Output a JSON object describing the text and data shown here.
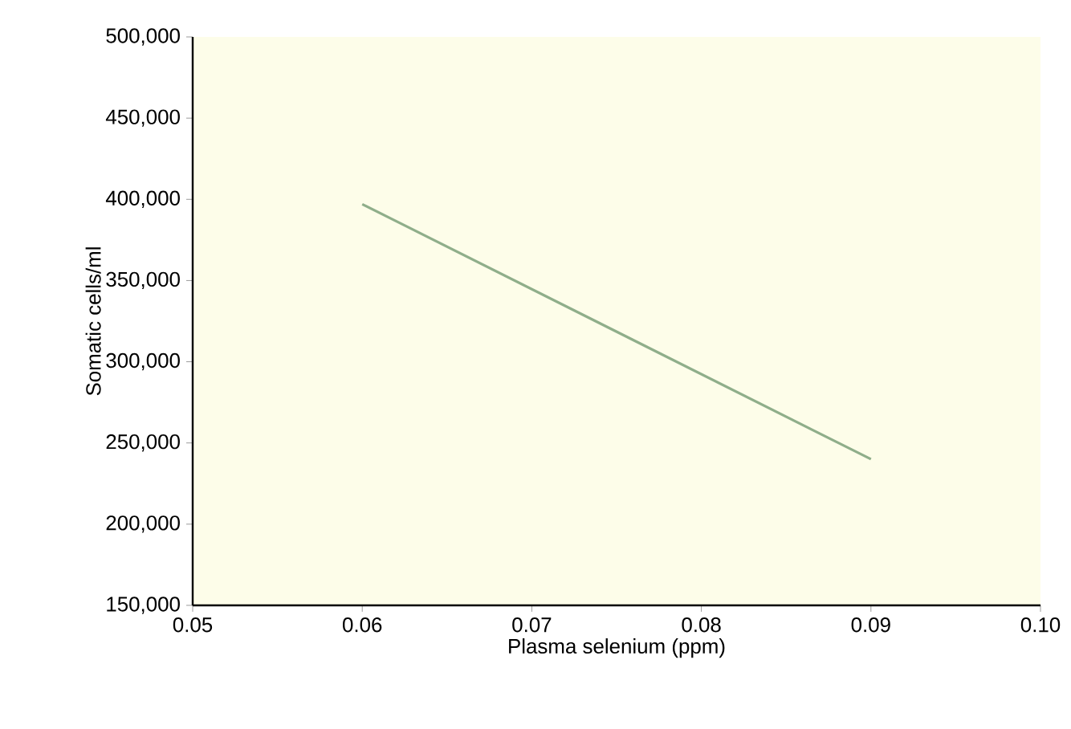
{
  "chart_data": {
    "type": "line",
    "xlabel": "Plasma selenium (ppm)",
    "ylabel": "Somatic cells/ml",
    "x": [
      0.06,
      0.09
    ],
    "values": [
      397000,
      240000
    ],
    "color": "#8fae8a",
    "xlim": [
      0.05,
      0.1
    ],
    "xticks": [
      0.05,
      0.06,
      0.07,
      0.08,
      0.09,
      {
        "value": 0.1,
        "label": "0.10"
      }
    ],
    "ylim": [
      150000,
      500000
    ],
    "yticks": [
      {
        "value": 150000,
        "label": "150,000"
      },
      {
        "value": 200000,
        "label": "200,000"
      },
      {
        "value": 250000,
        "label": "250,000"
      },
      {
        "value": 300000,
        "label": "300,000"
      },
      {
        "value": 350000,
        "label": "350,000"
      },
      {
        "value": 400000,
        "label": "400,000"
      },
      {
        "value": 450000,
        "label": "450,000"
      },
      {
        "value": 500000,
        "label": "500,000"
      }
    ],
    "grid": false,
    "marker": "none",
    "line_style": "solid"
  }
}
